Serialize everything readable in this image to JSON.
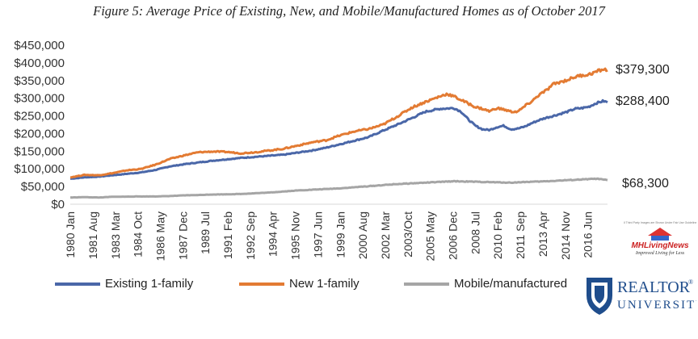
{
  "title": "Figure 5: Average Price of Existing, New, and Mobile/Manufactured Homes as of October 2017",
  "chart_data": {
    "type": "line",
    "title": "Figure 5: Average Price of Existing, New, and Mobile/Manufactured Homes as of October 2017",
    "xlabel": "",
    "ylabel": "",
    "ylim": [
      0,
      450000
    ],
    "yticks": [
      "$0",
      "$50,000",
      "$100,000",
      "$150,000",
      "$200,000",
      "$250,000",
      "$300,000",
      "$350,000",
      "$400,000",
      "$450,000"
    ],
    "xlim": [
      1980.0,
      2017.8
    ],
    "xticks": [
      {
        "label": "1980 Jan",
        "year": 1980.0
      },
      {
        "label": "1981 Aug",
        "year": 1981.58
      },
      {
        "label": "1983 Mar",
        "year": 1983.17
      },
      {
        "label": "1984 Oct",
        "year": 1984.75
      },
      {
        "label": "1986 May",
        "year": 1986.33
      },
      {
        "label": "1987 Dec",
        "year": 1987.92
      },
      {
        "label": "1989 Jul",
        "year": 1989.5
      },
      {
        "label": "1991 Feb",
        "year": 1991.08
      },
      {
        "label": "1992 Sep",
        "year": 1992.67
      },
      {
        "label": "1994 Apr",
        "year": 1994.25
      },
      {
        "label": "1995 Nov",
        "year": 1995.83
      },
      {
        "label": "1997 Jun",
        "year": 1997.42
      },
      {
        "label": "1999 Jan",
        "year": 1999.0
      },
      {
        "label": "2000 Aug",
        "year": 2000.58
      },
      {
        "label": "2002 Mar",
        "year": 2002.17
      },
      {
        "label": "2003/Oct",
        "year": 2003.75
      },
      {
        "label": "2005 May",
        "year": 2005.33
      },
      {
        "label": "2006 Dec",
        "year": 2006.92
      },
      {
        "label": "2008 Jul",
        "year": 2008.5
      },
      {
        "label": "2010 Feb",
        "year": 2010.08
      },
      {
        "label": "2011 Sep",
        "year": 2011.67
      },
      {
        "label": "2013 Apr",
        "year": 2013.25
      },
      {
        "label": "2014 Nov",
        "year": 2014.83
      },
      {
        "label": "2016 Jun",
        "year": 2016.42
      }
    ],
    "grid": false,
    "legend": "bottom",
    "series": [
      {
        "name": "Existing 1-family",
        "color": "#4a67a8",
        "end_label": "$288,400",
        "points": [
          [
            1980.0,
            72000
          ],
          [
            1981.0,
            76000
          ],
          [
            1982.0,
            78000
          ],
          [
            1983.0,
            82000
          ],
          [
            1984.0,
            86000
          ],
          [
            1985.0,
            90000
          ],
          [
            1986.0,
            97000
          ],
          [
            1987.0,
            107000
          ],
          [
            1988.0,
            113000
          ],
          [
            1989.0,
            118000
          ],
          [
            1990.0,
            123000
          ],
          [
            1991.0,
            127000
          ],
          [
            1992.0,
            131000
          ],
          [
            1993.0,
            134000
          ],
          [
            1994.0,
            137000
          ],
          [
            1995.0,
            140000
          ],
          [
            1996.0,
            146000
          ],
          [
            1997.0,
            152000
          ],
          [
            1998.0,
            160000
          ],
          [
            1999.0,
            170000
          ],
          [
            2000.0,
            180000
          ],
          [
            2001.0,
            190000
          ],
          [
            2002.0,
            208000
          ],
          [
            2003.0,
            225000
          ],
          [
            2004.0,
            243000
          ],
          [
            2005.0,
            262000
          ],
          [
            2006.0,
            270000
          ],
          [
            2007.0,
            272000
          ],
          [
            2007.5,
            262000
          ],
          [
            2008.0,
            240000
          ],
          [
            2008.5,
            222000
          ],
          [
            2009.0,
            212000
          ],
          [
            2009.5,
            210000
          ],
          [
            2010.0,
            218000
          ],
          [
            2010.5,
            222000
          ],
          [
            2011.0,
            212000
          ],
          [
            2011.5,
            214000
          ],
          [
            2012.0,
            220000
          ],
          [
            2012.5,
            230000
          ],
          [
            2013.0,
            238000
          ],
          [
            2013.5,
            245000
          ],
          [
            2014.0,
            250000
          ],
          [
            2014.5,
            256000
          ],
          [
            2015.0,
            262000
          ],
          [
            2015.5,
            270000
          ],
          [
            2016.0,
            272000
          ],
          [
            2016.5,
            276000
          ],
          [
            2017.0,
            286000
          ],
          [
            2017.5,
            292000
          ],
          [
            2017.8,
            288400
          ]
        ]
      },
      {
        "name": "New 1-family",
        "color": "#e37b33",
        "end_label": "$379,300",
        "points": [
          [
            1980.0,
            76000
          ],
          [
            1981.0,
            83000
          ],
          [
            1982.0,
            82000
          ],
          [
            1983.0,
            88000
          ],
          [
            1984.0,
            96000
          ],
          [
            1985.0,
            100000
          ],
          [
            1986.0,
            112000
          ],
          [
            1987.0,
            128000
          ],
          [
            1988.0,
            138000
          ],
          [
            1989.0,
            147000
          ],
          [
            1990.0,
            149000
          ],
          [
            1991.0,
            148000
          ],
          [
            1992.0,
            144000
          ],
          [
            1993.0,
            147000
          ],
          [
            1994.0,
            152000
          ],
          [
            1995.0,
            157000
          ],
          [
            1996.0,
            166000
          ],
          [
            1997.0,
            175000
          ],
          [
            1998.0,
            181000
          ],
          [
            1999.0,
            195000
          ],
          [
            2000.0,
            206000
          ],
          [
            2001.0,
            213000
          ],
          [
            2002.0,
            225000
          ],
          [
            2003.0,
            248000
          ],
          [
            2004.0,
            273000
          ],
          [
            2005.0,
            290000
          ],
          [
            2006.0,
            305000
          ],
          [
            2006.5,
            312000
          ],
          [
            2007.0,
            305000
          ],
          [
            2007.5,
            295000
          ],
          [
            2008.0,
            285000
          ],
          [
            2008.5,
            275000
          ],
          [
            2009.0,
            270000
          ],
          [
            2009.5,
            263000
          ],
          [
            2010.0,
            272000
          ],
          [
            2010.5,
            268000
          ],
          [
            2011.0,
            262000
          ],
          [
            2011.5,
            262000
          ],
          [
            2012.0,
            278000
          ],
          [
            2012.5,
            292000
          ],
          [
            2013.0,
            310000
          ],
          [
            2013.5,
            322000
          ],
          [
            2014.0,
            340000
          ],
          [
            2014.5,
            346000
          ],
          [
            2015.0,
            352000
          ],
          [
            2015.5,
            360000
          ],
          [
            2016.0,
            365000
          ],
          [
            2016.5,
            367000
          ],
          [
            2017.0,
            375000
          ],
          [
            2017.5,
            382000
          ],
          [
            2017.8,
            379300
          ]
        ]
      },
      {
        "name": "Mobile/manufactured",
        "color": "#a5a5a5",
        "end_label": "$68,300",
        "points": [
          [
            1980.0,
            19000
          ],
          [
            1981.0,
            20000
          ],
          [
            1982.0,
            19000
          ],
          [
            1983.0,
            21000
          ],
          [
            1984.0,
            21500
          ],
          [
            1985.0,
            22000
          ],
          [
            1986.0,
            22000
          ],
          [
            1987.0,
            23000
          ],
          [
            1988.0,
            25000
          ],
          [
            1989.0,
            26000
          ],
          [
            1990.0,
            27500
          ],
          [
            1991.0,
            28000
          ],
          [
            1992.0,
            29000
          ],
          [
            1993.0,
            31000
          ],
          [
            1994.0,
            33000
          ],
          [
            1995.0,
            36000
          ],
          [
            1996.0,
            39000
          ],
          [
            1997.0,
            41000
          ],
          [
            1998.0,
            43000
          ],
          [
            1999.0,
            45000
          ],
          [
            2000.0,
            48000
          ],
          [
            2001.0,
            51000
          ],
          [
            2002.0,
            54000
          ],
          [
            2003.0,
            57000
          ],
          [
            2004.0,
            59000
          ],
          [
            2005.0,
            61000
          ],
          [
            2006.0,
            63000
          ],
          [
            2007.0,
            65000
          ],
          [
            2008.0,
            64000
          ],
          [
            2009.0,
            63000
          ],
          [
            2010.0,
            62000
          ],
          [
            2011.0,
            61000
          ],
          [
            2012.0,
            63000
          ],
          [
            2013.0,
            64000
          ],
          [
            2014.0,
            66000
          ],
          [
            2015.0,
            68000
          ],
          [
            2016.0,
            70000
          ],
          [
            2017.0,
            72000
          ],
          [
            2017.8,
            68300
          ]
        ]
      }
    ]
  },
  "logos": {
    "mh_brand": "MHLivingNews",
    "mh_tagline": "Improved Living for Less",
    "mh_top_text": "All Third Party Images are Shown Under Fair Use Guidelines",
    "ru_line1": "REALTOR",
    "ru_reg": "®",
    "ru_line2": "UNIVERSITY"
  }
}
